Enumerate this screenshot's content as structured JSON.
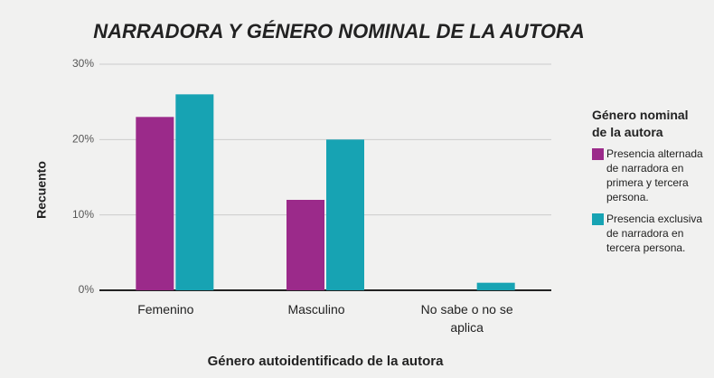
{
  "chart_data": {
    "type": "bar",
    "title": "NARRADORA Y GÉNERO NOMINAL DE LA AUTORA",
    "x_label": "Género autoidentificado de la autora",
    "y_label": "Recuento",
    "legend_title": "Género nominal de la autora",
    "categories": [
      "Femenino",
      "Masculino",
      "No sabe o no se aplica"
    ],
    "series": [
      {
        "name": "Presencia alternada de narradora en primera y tercera persona.",
        "color": "#9b2a8a",
        "values": [
          23,
          12,
          0
        ]
      },
      {
        "name": "Presencia exclusiva de narradora en tercera persona.",
        "color": "#17a3b3",
        "values": [
          26,
          20,
          1
        ]
      }
    ],
    "ylim": [
      0,
      30
    ],
    "yticks": [
      {
        "value": 0,
        "label": "0%"
      },
      {
        "value": 10,
        "label": "10%"
      },
      {
        "value": 20,
        "label": "20%"
      },
      {
        "value": 30,
        "label": "30%"
      }
    ],
    "grid": true,
    "legend": "right"
  }
}
